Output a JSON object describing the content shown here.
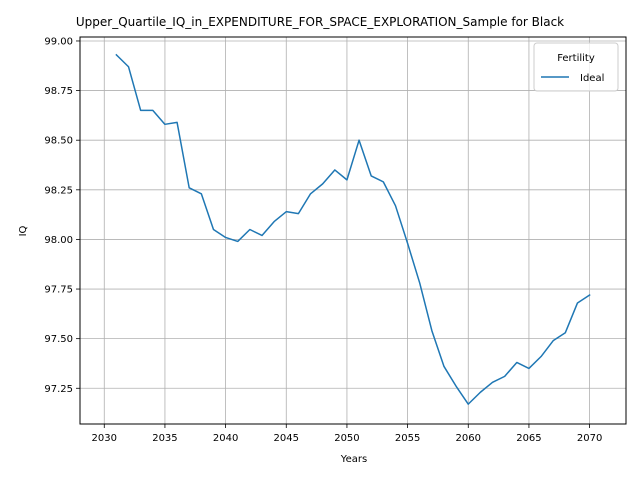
{
  "chart_data": {
    "type": "line",
    "title": "Upper_Quartile_IQ_in_EXPENDITURE_FOR_SPACE_EXPLORATION_Sample for Black",
    "xlabel": "Years",
    "ylabel": "IQ",
    "xlim": [
      2028,
      2073
    ],
    "ylim": [
      97.07,
      99.02
    ],
    "x_ticks": [
      2030,
      2035,
      2040,
      2045,
      2050,
      2055,
      2060,
      2065,
      2070
    ],
    "y_ticks": [
      97.25,
      97.5,
      97.75,
      98.0,
      98.25,
      98.5,
      98.75,
      99.0
    ],
    "grid": true,
    "legend": {
      "title": "Fertility",
      "position": "top-right"
    },
    "series": [
      {
        "name": "Ideal",
        "color": "#1f77b4",
        "x": [
          2031,
          2032,
          2033,
          2034,
          2035,
          2036,
          2037,
          2038,
          2039,
          2040,
          2041,
          2042,
          2043,
          2044,
          2045,
          2046,
          2047,
          2048,
          2049,
          2050,
          2051,
          2052,
          2053,
          2054,
          2055,
          2056,
          2057,
          2058,
          2059,
          2060,
          2061,
          2062,
          2063,
          2064,
          2065,
          2066,
          2067,
          2068,
          2069,
          2070
        ],
        "y": [
          98.93,
          98.87,
          98.65,
          98.65,
          98.58,
          98.59,
          98.26,
          98.23,
          98.05,
          98.01,
          97.99,
          98.05,
          98.02,
          98.09,
          98.14,
          98.13,
          98.23,
          98.28,
          98.35,
          98.3,
          98.5,
          98.32,
          98.29,
          98.17,
          97.98,
          97.78,
          97.54,
          97.36,
          97.26,
          97.17,
          97.23,
          97.28,
          97.31,
          97.38,
          97.35,
          97.41,
          97.49,
          97.53,
          97.68,
          97.72
        ]
      }
    ]
  }
}
